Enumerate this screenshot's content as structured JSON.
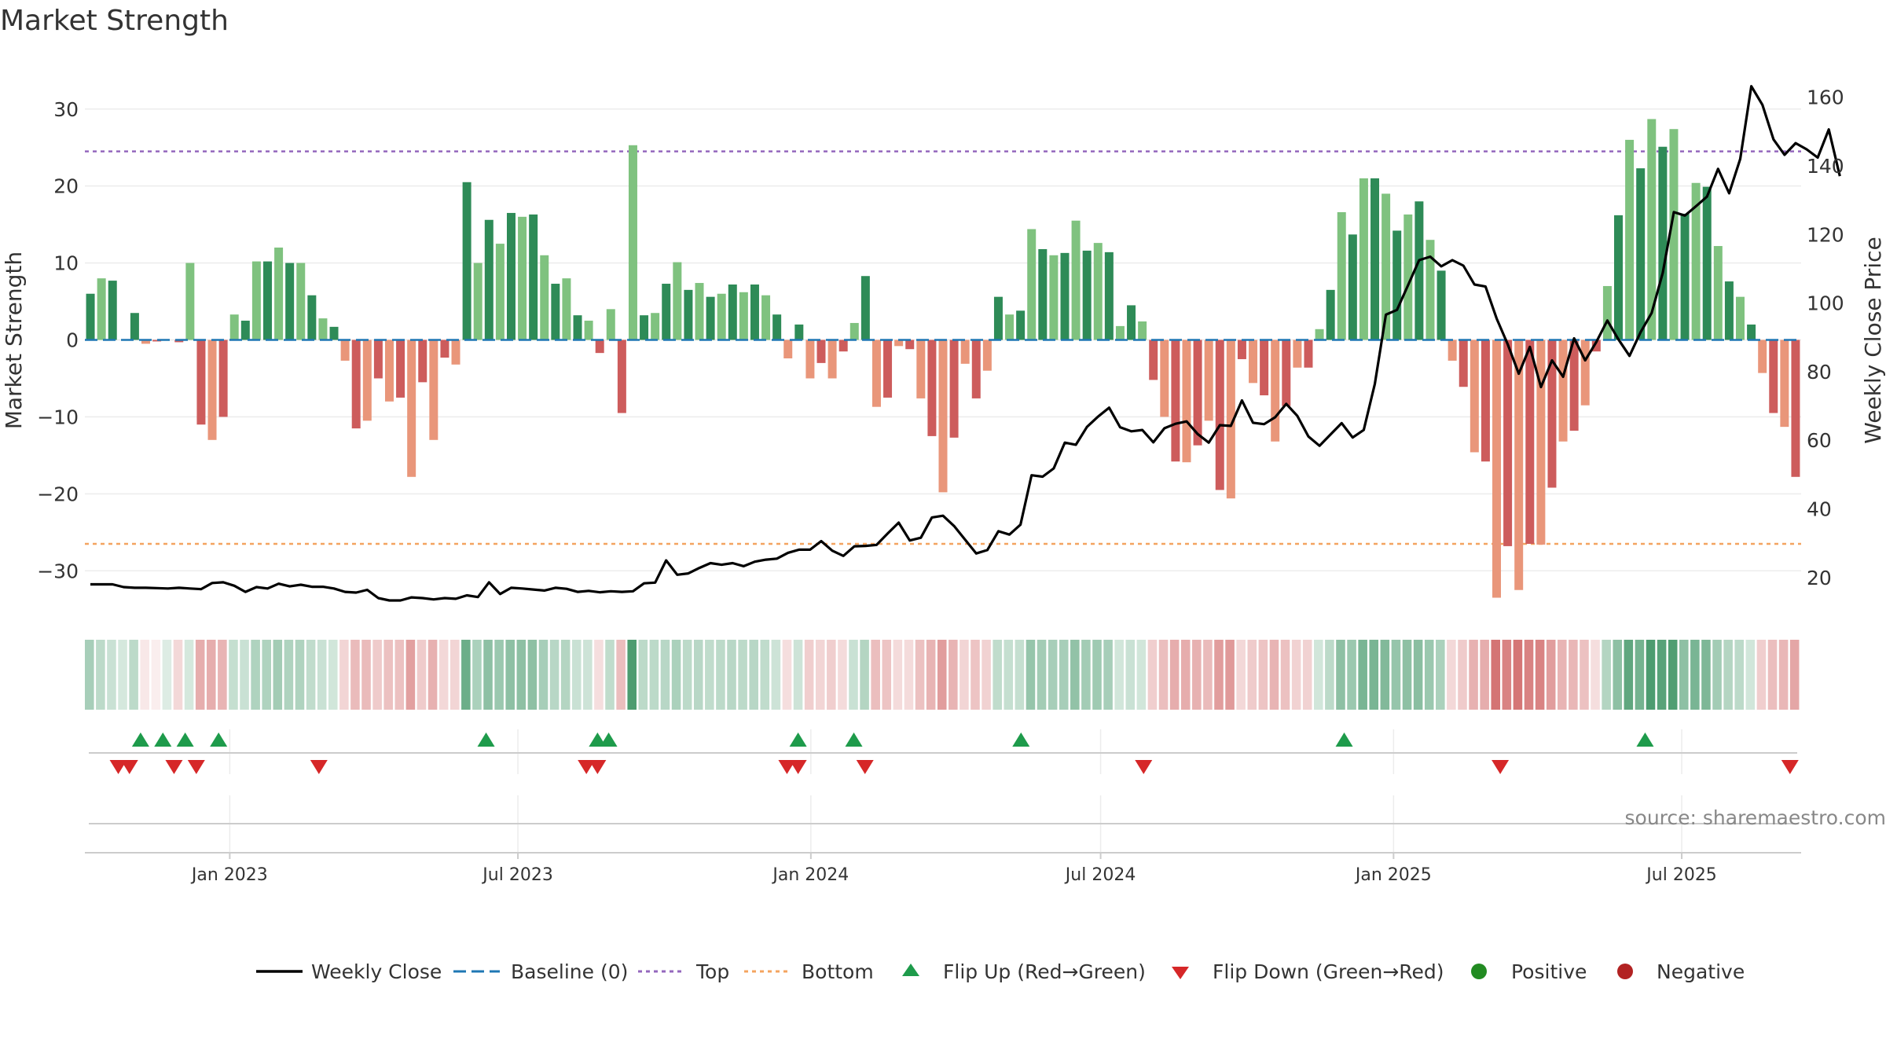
{
  "chart_data": {
    "type": "bar",
    "title": "Market Strength",
    "ylabel": "Market Strength",
    "y2label": "Weekly Close Price",
    "ylim": [
      -36,
      36
    ],
    "y2lim": [
      8.5,
      170
    ],
    "yticks": [
      -30,
      -20,
      -10,
      0,
      10,
      20,
      30
    ],
    "y2ticks": [
      20,
      40,
      60,
      80,
      100,
      120,
      140,
      160
    ],
    "x_start": "2022-10-02",
    "x_end": "2025-09-14",
    "x_ticks": [
      {
        "label": "Jan 2023",
        "date": "2023-01-01"
      },
      {
        "label": "Jul 2023",
        "date": "2023-07-01"
      },
      {
        "label": "Jan 2024",
        "date": "2024-01-01"
      },
      {
        "label": "Jul 2024",
        "date": "2024-07-01"
      },
      {
        "label": "Jan 2025",
        "date": "2025-01-01"
      },
      {
        "label": "Jul 2025",
        "date": "2025-07-01"
      }
    ],
    "top_line": 24.5,
    "bottom_line": -26.5,
    "source": "source: sharemaestro.com",
    "legend": {
      "weekly_close": "Weekly Close",
      "baseline": "Baseline (0)",
      "top": "Top",
      "bottom": "Bottom",
      "flip_up": "Flip Up (Red→Green)",
      "flip_down": "Flip Down (Green→Red)",
      "positive": "Positive",
      "negative": "Negative"
    },
    "strength": [
      6,
      8,
      7.7,
      0,
      3.5,
      -0.5,
      -0.2,
      0,
      -0.3,
      10,
      -11,
      -13,
      -10,
      3.3,
      2.5,
      10.2,
      10.2,
      12,
      10,
      10,
      5.8,
      2.8,
      1.7,
      -2.7,
      -11.5,
      -10.5,
      -5,
      -8,
      -7.5,
      -17.8,
      -5.5,
      -13,
      -2.3,
      -3.2,
      20.5,
      10,
      15.6,
      12.5,
      16.5,
      16,
      16.3,
      11,
      7.3,
      8,
      3.2,
      2.5,
      -1.7,
      4,
      -9.5,
      25.3,
      3.2,
      3.5,
      7.3,
      10.1,
      6.5,
      7.4,
      5.6,
      6,
      7.2,
      6.2,
      7.2,
      5.8,
      3.3,
      -2.4,
      2,
      -5,
      -3,
      -5,
      -1.5,
      2.2,
      8.3,
      -8.7,
      -7.5,
      -0.8,
      -1.2,
      -7.6,
      -12.5,
      -19.8,
      -12.7,
      -3.1,
      -7.6,
      -4,
      5.6,
      3.3,
      3.8,
      14.4,
      11.8,
      11,
      11.3,
      15.5,
      11.6,
      12.6,
      11.4,
      1.8,
      4.5,
      2.4,
      -5.2,
      -10,
      -15.8,
      -15.9,
      -13.7,
      -10.5,
      -19.5,
      -20.6,
      -2.5,
      -5.6,
      -7.2,
      -13.2,
      -8.6,
      -3.6,
      -3.6,
      1.4,
      6.5,
      16.6,
      13.7,
      21,
      21,
      19,
      14.2,
      16.3,
      18,
      13,
      9,
      -2.7,
      -6.1,
      -14.6,
      -15.8,
      -33.5,
      -26.8,
      -32.5,
      -26.5,
      -26.6,
      -19.2,
      -13.2,
      -11.8,
      -8.5,
      -1.5,
      7,
      16.2,
      26,
      22.3,
      28.7,
      25.1,
      27.4,
      16.4,
      20.4,
      19.9,
      12.2,
      7.6,
      5.6,
      2,
      -4.3,
      -9.5,
      -11.3,
      -17.8
    ],
    "weekly_close": [
      18,
      18,
      18,
      17.2,
      17,
      17,
      16.9,
      16.8,
      17,
      16.8,
      16.6,
      18.4,
      18.6,
      17.6,
      15.8,
      17.2,
      16.8,
      18.2,
      17.4,
      17.9,
      17.3,
      17.3,
      16.8,
      15.8,
      15.6,
      16.4,
      14,
      13.3,
      13.3,
      14.2,
      14,
      13.6,
      14,
      13.8,
      14.8,
      14.3,
      18.6,
      15.2,
      17,
      16.8,
      16.5,
      16.2,
      17,
      16.7,
      15.8,
      16.1,
      15.7,
      16,
      15.8,
      16,
      18.3,
      18.5,
      25,
      20.8,
      21.2,
      22.8,
      24.2,
      23.7,
      24.2,
      23.3,
      24.6,
      25.2,
      25.5,
      27.2,
      28.1,
      28.1,
      30.6,
      27.8,
      26.3,
      29.1,
      29.2,
      29.5,
      32.8,
      36,
      30.8,
      31.6,
      37.5,
      38,
      35,
      31,
      27,
      28,
      33.5,
      32.5,
      35.4,
      49.8,
      49.4,
      51.8,
      59.3,
      58.7,
      63.9,
      66.9,
      69.5,
      63.8,
      62.6,
      63,
      59.4,
      63.5,
      64.8,
      65.5,
      61.8,
      59.3,
      64.4,
      64.2,
      71.6,
      65.1,
      64.7,
      66.7,
      70.6,
      67.1,
      61.1,
      58.4,
      61.7,
      65,
      60.8,
      63,
      76.4,
      96.6,
      98,
      105.2,
      112.5,
      113.5,
      110.7,
      112.5,
      110.9,
      105.4,
      104.8,
      95.5,
      88,
      79.4,
      87.2,
      75.5,
      83.3,
      78.5,
      89.7,
      83.3,
      88.6,
      94.9,
      89.4,
      84.6,
      91.5,
      97.1,
      108.8,
      126.5,
      125.5,
      128.2,
      131,
      139.1,
      132,
      142,
      163.2,
      157.8,
      147.7,
      143.2,
      146.6,
      144.8,
      142.4,
      150.6,
      137
    ],
    "heat_alpha": [
      0.42,
      0.32,
      0.26,
      0.2,
      0.32,
      0.14,
      0.1,
      0.16,
      0.24,
      0.2,
      0.5,
      0.5,
      0.46,
      0.28,
      0.26,
      0.38,
      0.38,
      0.44,
      0.38,
      0.38,
      0.3,
      0.26,
      0.22,
      0.26,
      0.42,
      0.42,
      0.32,
      0.38,
      0.38,
      0.58,
      0.32,
      0.48,
      0.24,
      0.26,
      0.7,
      0.4,
      0.54,
      0.48,
      0.54,
      0.54,
      0.54,
      0.42,
      0.34,
      0.36,
      0.26,
      0.24,
      0.2,
      0.3,
      0.4,
      0.85,
      0.32,
      0.32,
      0.34,
      0.4,
      0.32,
      0.34,
      0.3,
      0.32,
      0.34,
      0.32,
      0.34,
      0.3,
      0.24,
      0.2,
      0.24,
      0.3,
      0.26,
      0.3,
      0.22,
      0.26,
      0.36,
      0.4,
      0.36,
      0.22,
      0.22,
      0.38,
      0.46,
      0.6,
      0.46,
      0.26,
      0.36,
      0.28,
      0.3,
      0.28,
      0.28,
      0.5,
      0.44,
      0.42,
      0.42,
      0.52,
      0.44,
      0.46,
      0.42,
      0.22,
      0.26,
      0.22,
      0.3,
      0.4,
      0.5,
      0.5,
      0.48,
      0.42,
      0.6,
      0.62,
      0.24,
      0.32,
      0.36,
      0.46,
      0.38,
      0.28,
      0.28,
      0.22,
      0.32,
      0.54,
      0.48,
      0.64,
      0.64,
      0.6,
      0.5,
      0.54,
      0.56,
      0.48,
      0.4,
      0.24,
      0.32,
      0.48,
      0.5,
      0.85,
      0.76,
      0.84,
      0.76,
      0.76,
      0.6,
      0.46,
      0.44,
      0.38,
      0.2,
      0.36,
      0.54,
      0.76,
      0.66,
      0.85,
      0.8,
      0.84,
      0.54,
      0.64,
      0.62,
      0.44,
      0.36,
      0.32,
      0.22,
      0.3,
      0.4,
      0.44,
      0.55
    ],
    "flip_up_dates": [
      "2022-11-06",
      "2022-11-20",
      "2022-12-04",
      "2022-12-25",
      "2023-06-11",
      "2023-08-20",
      "2023-08-27",
      "2023-12-24",
      "2024-01-28",
      "2024-05-12",
      "2024-12-01",
      "2025-06-08"
    ],
    "flip_down_dates": [
      "2022-10-23",
      "2022-10-30",
      "2022-11-27",
      "2022-12-11",
      "2023-02-26",
      "2023-08-13",
      "2023-08-20",
      "2023-12-17",
      "2023-12-24",
      "2024-02-04",
      "2024-07-28",
      "2025-03-09",
      "2025-09-07"
    ],
    "colors": {
      "pos_dark": "#2e8b57",
      "pos_light": "#7fc27f",
      "neg_dark": "#cd5c5c",
      "neg_light": "#e9967a",
      "top_line": "#9467bd",
      "bottom_line": "#f4a460",
      "baseline": "#1f77b4",
      "flip_up": "#1e9b4b",
      "flip_down": "#d62728",
      "positive_dot": "#228b22",
      "negative_dot": "#b22222",
      "close_line": "#000000"
    }
  }
}
